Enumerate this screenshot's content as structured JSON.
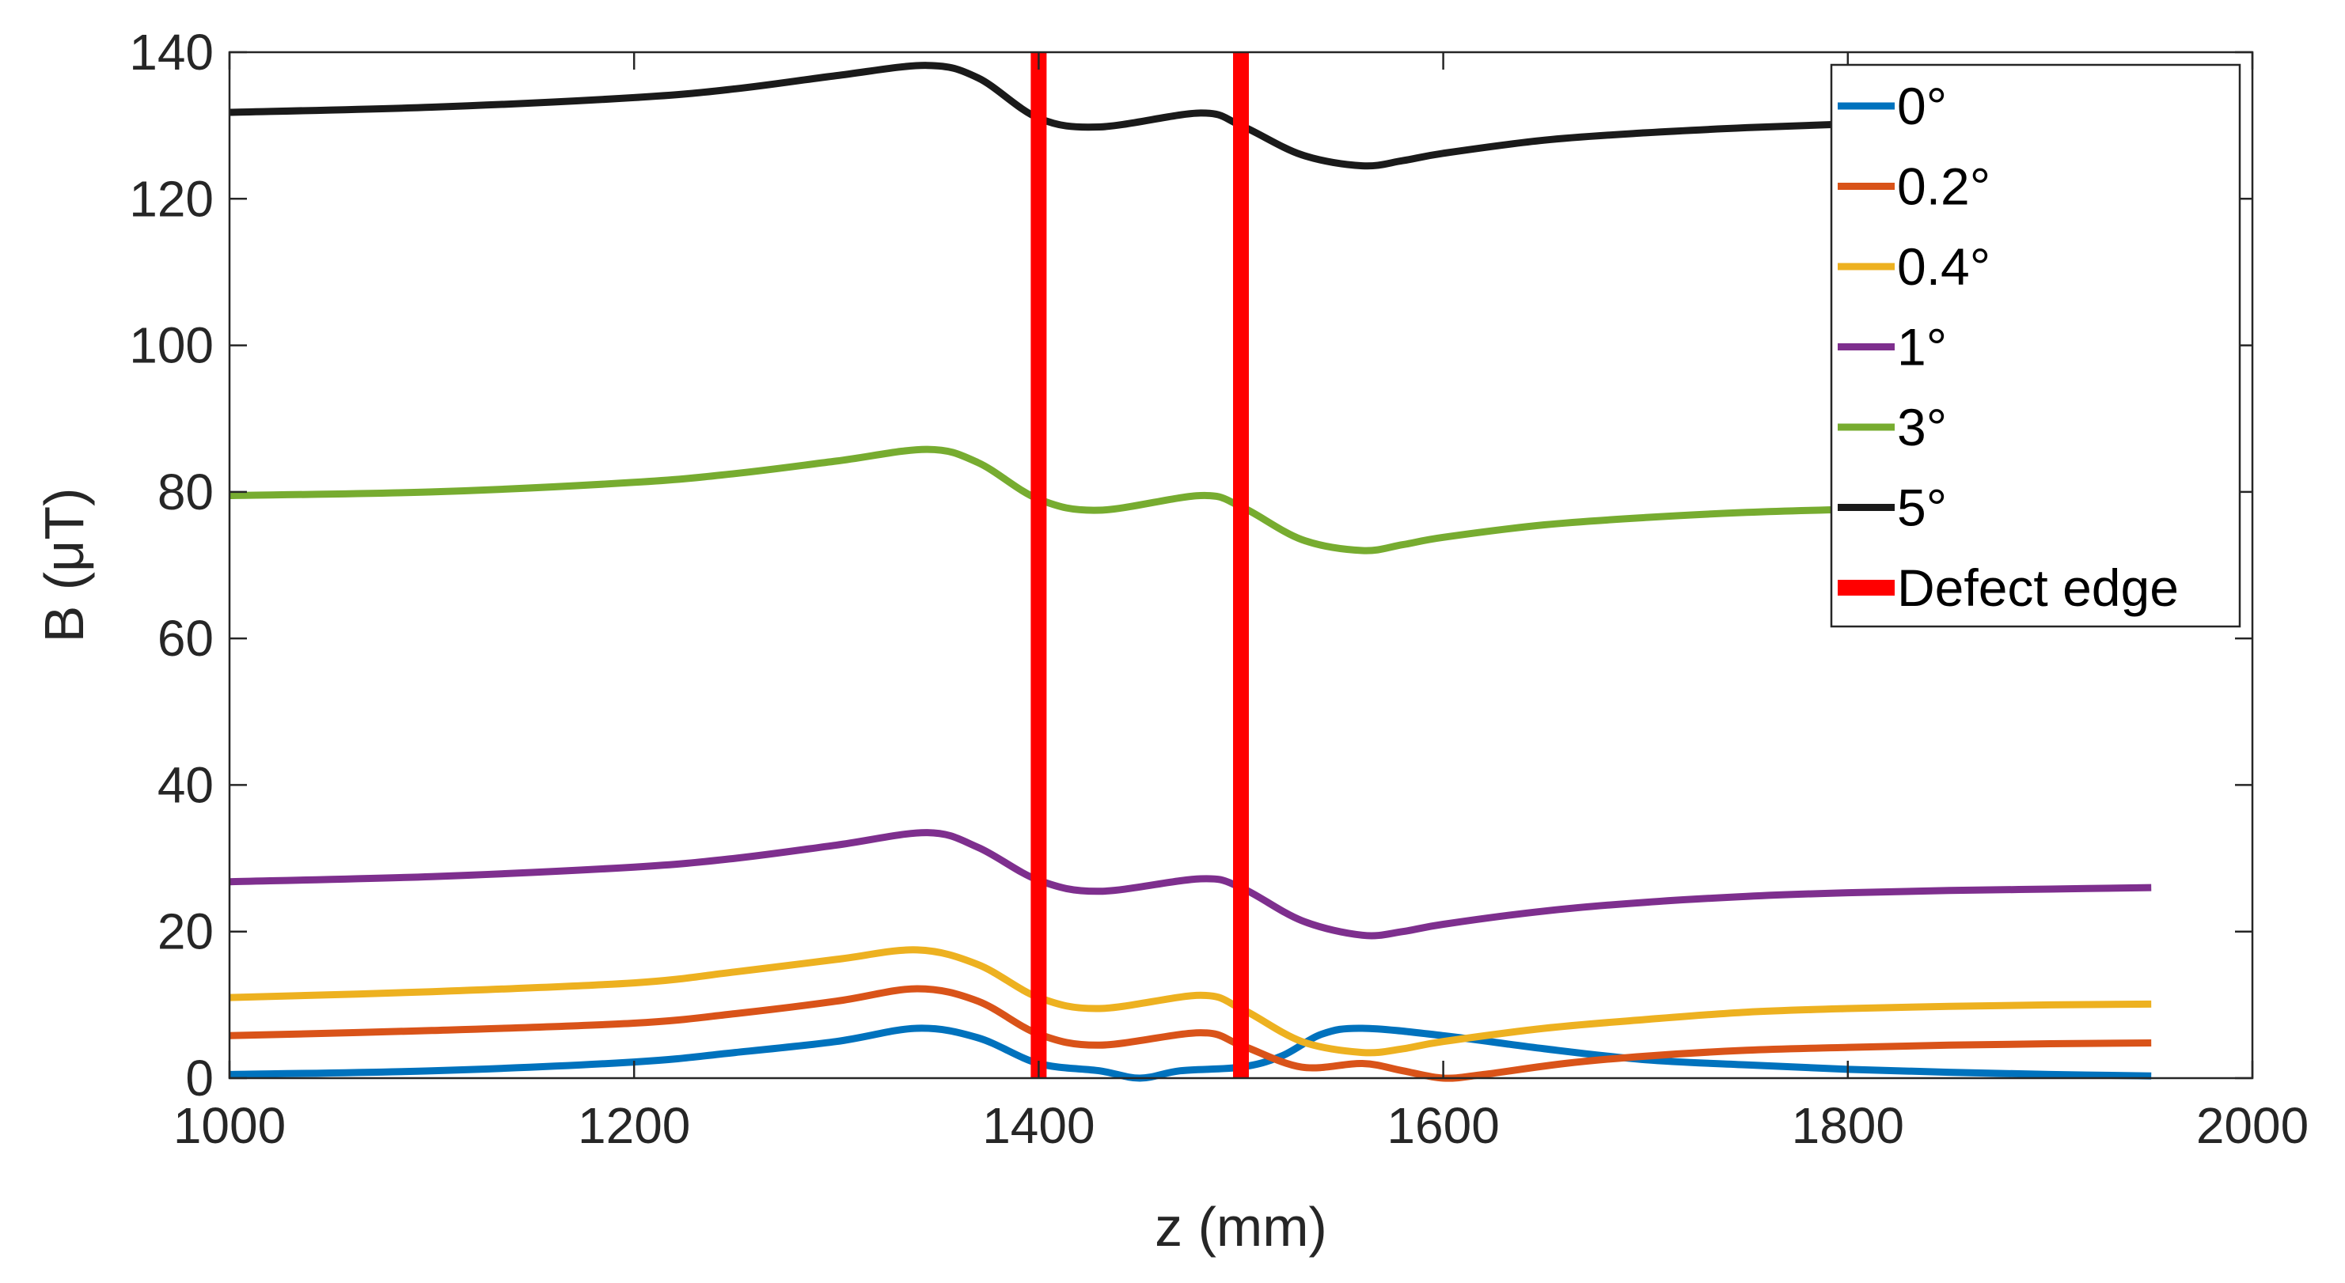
{
  "chart_data": {
    "type": "line",
    "title": "",
    "xlabel": "z (mm)",
    "ylabel": "B (μT)",
    "xlim": [
      1000,
      2000
    ],
    "ylim": [
      0,
      140
    ],
    "x_ticks": [
      1000,
      1200,
      1400,
      1600,
      1800,
      2000
    ],
    "y_ticks": [
      0,
      20,
      40,
      60,
      80,
      100,
      120,
      140
    ],
    "grid": false,
    "legend_position": "top-right",
    "series": [
      {
        "name": "0°",
        "color": "#0072BD",
        "x": [
          1000,
          1100,
          1200,
          1250,
          1300,
          1340,
          1370,
          1400,
          1430,
          1450,
          1470,
          1500,
          1520,
          1540,
          1560,
          1600,
          1650,
          1700,
          1750,
          1800,
          1850,
          1900,
          1950
        ],
        "y": [
          0.5,
          1.0,
          2.2,
          3.5,
          5.0,
          6.8,
          5.5,
          2.0,
          1.0,
          0.0,
          1.0,
          1.5,
          3.0,
          6.0,
          6.8,
          5.8,
          4.0,
          2.5,
          1.8,
          1.2,
          0.8,
          0.5,
          0.3
        ]
      },
      {
        "name": "0.2°",
        "color": "#D95319",
        "x": [
          1000,
          1100,
          1200,
          1250,
          1300,
          1340,
          1370,
          1400,
          1430,
          1480,
          1500,
          1530,
          1560,
          1580,
          1600,
          1620,
          1660,
          1700,
          1750,
          1800,
          1850,
          1900,
          1950
        ],
        "y": [
          5.8,
          6.5,
          7.5,
          8.8,
          10.5,
          12.2,
          10.5,
          6.0,
          4.5,
          6.2,
          4.5,
          1.5,
          2.0,
          1.0,
          0.0,
          0.5,
          2.0,
          3.0,
          3.8,
          4.2,
          4.5,
          4.7,
          4.8
        ]
      },
      {
        "name": "0.4°",
        "color": "#EDB120",
        "x": [
          1000,
          1100,
          1200,
          1250,
          1300,
          1340,
          1370,
          1400,
          1430,
          1480,
          1500,
          1530,
          1560,
          1580,
          1600,
          1650,
          1700,
          1750,
          1800,
          1850,
          1900,
          1950
        ],
        "y": [
          11.0,
          11.8,
          13.0,
          14.5,
          16.2,
          17.5,
          15.5,
          11.0,
          9.5,
          11.3,
          9.5,
          5.0,
          3.5,
          4.0,
          5.0,
          6.8,
          8.0,
          9.0,
          9.5,
          9.8,
          10.0,
          10.1
        ]
      },
      {
        "name": "1°",
        "color": "#7E2F8E",
        "x": [
          1000,
          1100,
          1200,
          1250,
          1300,
          1345,
          1370,
          1400,
          1430,
          1480,
          1500,
          1530,
          1560,
          1580,
          1600,
          1650,
          1700,
          1750,
          1800,
          1850,
          1900,
          1950
        ],
        "y": [
          26.8,
          27.5,
          28.8,
          30.0,
          31.8,
          33.5,
          31.5,
          27.0,
          25.5,
          27.2,
          26.0,
          21.5,
          19.5,
          20.0,
          21.0,
          22.8,
          24.0,
          24.8,
          25.3,
          25.6,
          25.8,
          26.0
        ]
      },
      {
        "name": "3°",
        "color": "#77AC30",
        "x": [
          1000,
          1100,
          1200,
          1250,
          1300,
          1345,
          1370,
          1400,
          1430,
          1480,
          1500,
          1530,
          1560,
          1580,
          1600,
          1650,
          1700,
          1750,
          1800,
          1850,
          1900
        ],
        "y": [
          79.5,
          80.0,
          81.3,
          82.5,
          84.2,
          85.8,
          84.0,
          79.0,
          77.5,
          79.5,
          78.0,
          73.5,
          72.0,
          72.8,
          73.8,
          75.5,
          76.5,
          77.2,
          77.6,
          77.8,
          78.0
        ]
      },
      {
        "name": "5°",
        "color": "#1A1A1A",
        "x": [
          1000,
          1100,
          1200,
          1250,
          1300,
          1345,
          1370,
          1400,
          1430,
          1480,
          1500,
          1530,
          1560,
          1580,
          1600,
          1650,
          1700,
          1750,
          1800,
          1850
        ],
        "y": [
          131.8,
          132.5,
          133.8,
          135.0,
          136.8,
          138.2,
          136.5,
          131.0,
          129.8,
          131.7,
          130.0,
          126.0,
          124.5,
          125.2,
          126.2,
          128.0,
          129.0,
          129.7,
          130.2,
          130.5
        ]
      }
    ],
    "defect_edges": {
      "name": "Defect edge",
      "color": "#FF0000",
      "x": [
        1400,
        1500
      ]
    }
  }
}
